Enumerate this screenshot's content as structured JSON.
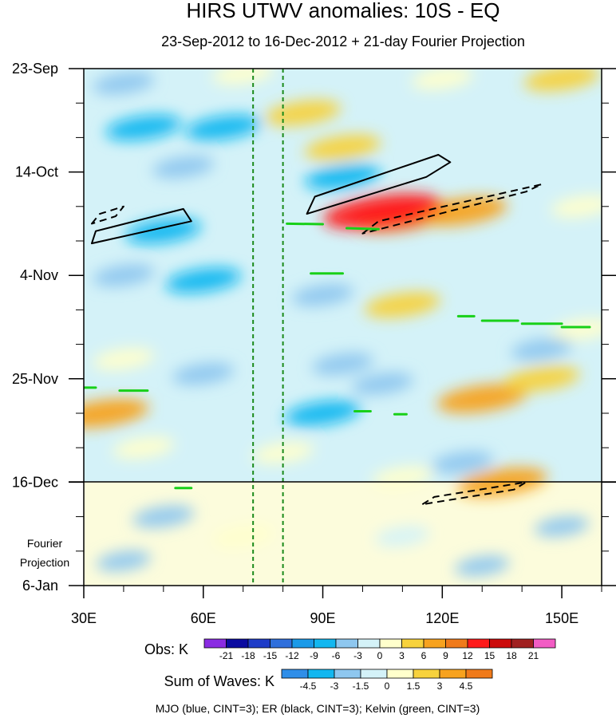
{
  "chart_data": {
    "type": "heatmap",
    "title": "HIRS UTWV anomalies: 10S - EQ",
    "subtitle": "23-Sep-2012 to 16-Dec-2012 + 21-day Fourier Projection",
    "xlabel": "",
    "ylabel": "",
    "x_ticks": [
      "30E",
      "60E",
      "90E",
      "120E",
      "150E"
    ],
    "x_tick_values": [
      30,
      60,
      90,
      120,
      150
    ],
    "xlim": [
      30,
      160
    ],
    "y_ticks": [
      "23-Sep",
      "14-Oct",
      "4-Nov",
      "25-Nov",
      "16-Dec",
      "6-Jan"
    ],
    "y_tick_days": [
      0,
      21,
      42,
      63,
      84,
      105
    ],
    "ylim_days": [
      0,
      105
    ],
    "projection_label_line1": "Fourier",
    "projection_label_line2": "Projection",
    "projection_start_day": 84,
    "projection_start_label": "16-Dec",
    "mjo_lon_lines": [
      72.5,
      80
    ],
    "field_samples": [
      {
        "lon": 40,
        "day": 3,
        "v": -3
      },
      {
        "lon": 70,
        "day": 1,
        "v": 3
      },
      {
        "lon": 120,
        "day": 2,
        "v": 3
      },
      {
        "lon": 150,
        "day": 2,
        "v": 6
      },
      {
        "lon": 85,
        "day": 9,
        "v": 6
      },
      {
        "lon": 95,
        "day": 16,
        "v": 6
      },
      {
        "lon": 45,
        "day": 12,
        "v": -6
      },
      {
        "lon": 65,
        "day": 12,
        "v": -6
      },
      {
        "lon": 55,
        "day": 20,
        "v": -3
      },
      {
        "lon": 95,
        "day": 22,
        "v": -6
      },
      {
        "lon": 110,
        "day": 30,
        "v": 12
      },
      {
        "lon": 125,
        "day": 29,
        "v": 9
      },
      {
        "lon": 105,
        "day": 29,
        "v": 15
      },
      {
        "lon": 155,
        "day": 28,
        "v": 3
      },
      {
        "lon": 50,
        "day": 33,
        "v": -6
      },
      {
        "lon": 60,
        "day": 43,
        "v": -6
      },
      {
        "lon": 90,
        "day": 46,
        "v": -3
      },
      {
        "lon": 40,
        "day": 42,
        "v": -3
      },
      {
        "lon": 110,
        "day": 48,
        "v": 6
      },
      {
        "lon": 155,
        "day": 53,
        "v": 3
      },
      {
        "lon": 145,
        "day": 57,
        "v": -3
      },
      {
        "lon": 40,
        "day": 59,
        "v": 3
      },
      {
        "lon": 60,
        "day": 62,
        "v": -3
      },
      {
        "lon": 95,
        "day": 60,
        "v": -3
      },
      {
        "lon": 105,
        "day": 64,
        "v": -3
      },
      {
        "lon": 130,
        "day": 67,
        "v": 9
      },
      {
        "lon": 145,
        "day": 63,
        "v": 6
      },
      {
        "lon": 35,
        "day": 70,
        "v": 9
      },
      {
        "lon": 90,
        "day": 70,
        "v": -6
      },
      {
        "lon": 45,
        "day": 77,
        "v": 3
      },
      {
        "lon": 80,
        "day": 78,
        "v": 3
      },
      {
        "lon": 125,
        "day": 80,
        "v": -3
      },
      {
        "lon": 135,
        "day": 84,
        "v": 9
      },
      {
        "lon": 110,
        "day": 83,
        "v": 3
      },
      {
        "lon": 50,
        "day": 91,
        "v": -3
      },
      {
        "lon": 70,
        "day": 95,
        "v": 3
      },
      {
        "lon": 150,
        "day": 93,
        "v": -1.5
      },
      {
        "lon": 110,
        "day": 95,
        "v": 1.5
      },
      {
        "lon": 40,
        "day": 100,
        "v": -1.5
      },
      {
        "lon": 130,
        "day": 101,
        "v": -1.5
      }
    ],
    "contours": {
      "er_solid": [
        {
          "lon": [
            32,
            33,
            55,
            57,
            32
          ],
          "day": [
            35.5,
            33,
            28.5,
            31,
            35.5
          ]
        },
        {
          "lon": [
            86,
            88,
            119,
            122,
            116,
            86
          ],
          "day": [
            29.5,
            26,
            17.5,
            19,
            22,
            29.5
          ]
        }
      ],
      "er_dashed": [
        {
          "lon": [
            32,
            34,
            40,
            38,
            32
          ],
          "day": [
            31.5,
            29.5,
            28,
            30,
            31.5
          ]
        },
        {
          "lon": [
            100,
            104,
            145,
            141,
            100
          ],
          "day": [
            33.5,
            31,
            23.5,
            25,
            33.5
          ]
        },
        {
          "lon": [
            115,
            118,
            141,
            138,
            115
          ],
          "day": [
            88.5,
            87,
            84,
            85.5,
            88.5
          ]
        }
      ],
      "kelvin": [
        {
          "lon": [
            81,
            90
          ],
          "day": [
            31.5,
            31.6
          ]
        },
        {
          "lon": [
            96,
            104
          ],
          "day": [
            32.4,
            32.6
          ]
        },
        {
          "lon": [
            87,
            95
          ],
          "day": [
            41.6,
            41.6
          ]
        },
        {
          "lon": [
            124,
            128
          ],
          "day": [
            50.3,
            50.3
          ]
        },
        {
          "lon": [
            130,
            139
          ],
          "day": [
            51.2,
            51.2
          ]
        },
        {
          "lon": [
            140,
            150
          ],
          "day": [
            51.8,
            51.8
          ]
        },
        {
          "lon": [
            150,
            157
          ],
          "day": [
            52.5,
            52.5
          ]
        },
        {
          "lon": [
            30,
            33
          ],
          "day": [
            64.8,
            64.8
          ]
        },
        {
          "lon": [
            39,
            46
          ],
          "day": [
            65.4,
            65.4
          ]
        },
        {
          "lon": [
            98,
            102
          ],
          "day": [
            69.6,
            69.6
          ]
        },
        {
          "lon": [
            108,
            111
          ],
          "day": [
            70.2,
            70.2
          ]
        },
        {
          "lon": [
            53,
            57
          ],
          "day": [
            85.2,
            85.2
          ]
        }
      ]
    },
    "obs_colorbar": {
      "label": "Obs: K",
      "ticks": [
        "-21",
        "-18",
        "-15",
        "-12",
        "-9",
        "-6",
        "-3",
        "0",
        "3",
        "6",
        "9",
        "12",
        "15",
        "18",
        "21"
      ],
      "colors": [
        "#8a2be2",
        "#0a0aa0",
        "#1e3cc8",
        "#2f6fdc",
        "#1a9ae8",
        "#12b7f0",
        "#8ec7ef",
        "#d4f2f8",
        "#ffffcc",
        "#f7d23c",
        "#f7a21e",
        "#f07a1a",
        "#ff1a1a",
        "#cc0a0a",
        "#a02020",
        "#f25cc4"
      ]
    },
    "wave_colorbar": {
      "label": "Sum of Waves: K",
      "ticks": [
        "-4.5",
        "-3",
        "-1.5",
        "0",
        "1.5",
        "3",
        "4.5"
      ],
      "colors": [
        "#2f8ee8",
        "#12b7f0",
        "#8ec7ef",
        "#d4f2f8",
        "#ffffcc",
        "#f7d23c",
        "#f7a21e",
        "#f07a1a"
      ]
    },
    "legend_text": "MJO (blue, CINT=3); ER (black, CINT=3); Kelvin (green, CINT=3)"
  }
}
